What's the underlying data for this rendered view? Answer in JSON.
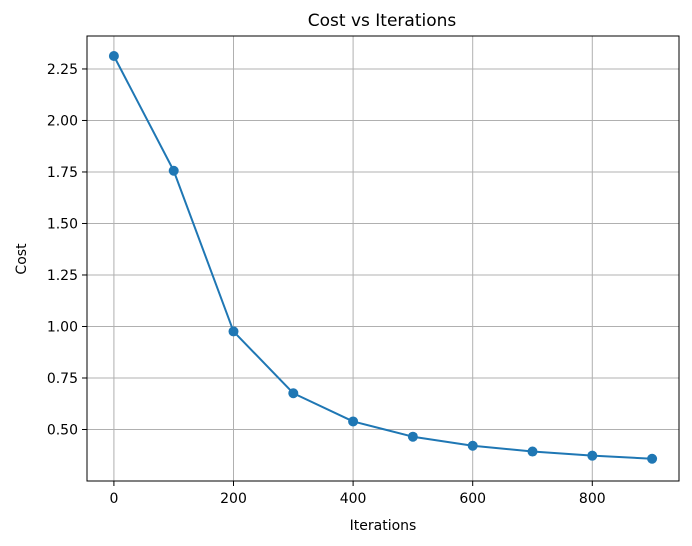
{
  "chart_data": {
    "type": "line",
    "title": "Cost vs Iterations",
    "xlabel": "Iterations",
    "ylabel": "Cost",
    "x": [
      0,
      100,
      200,
      300,
      400,
      500,
      600,
      700,
      800,
      900
    ],
    "series": [
      {
        "values": [
          2.313,
          1.756,
          0.976,
          0.676,
          0.539,
          0.465,
          0.421,
          0.393,
          0.373,
          0.358
        ],
        "color": "#1f77b4",
        "marker": "circle"
      }
    ],
    "xlim": [
      -45,
      945
    ],
    "ylim": [
      0.25,
      2.41
    ],
    "xticks": [
      0,
      200,
      400,
      600,
      800
    ],
    "xtick_labels": [
      "0",
      "200",
      "400",
      "600",
      "800"
    ],
    "yticks": [
      0.5,
      0.75,
      1.0,
      1.25,
      1.5,
      1.75,
      2.0,
      2.25
    ],
    "ytick_labels": [
      "0.50",
      "0.75",
      "1.00",
      "1.25",
      "1.50",
      "1.75",
      "2.00",
      "2.25"
    ],
    "grid": true
  }
}
